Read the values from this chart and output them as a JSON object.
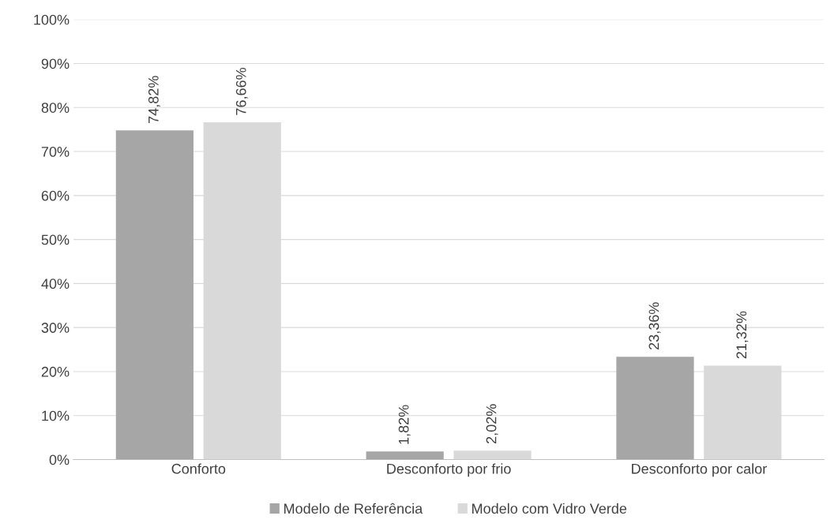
{
  "chart_data": {
    "type": "bar",
    "categories": [
      "Conforto",
      "Desconforto por frio",
      "Desconforto por calor"
    ],
    "series": [
      {
        "name": "Modelo de Referência",
        "color": "#a6a6a6",
        "values": [
          74.82,
          1.82,
          23.36
        ],
        "value_labels": [
          "74,82%",
          "1,82%",
          "23,36%"
        ]
      },
      {
        "name": "Modelo com Vidro Verde",
        "color": "#d9d9d9",
        "values": [
          76.66,
          2.02,
          21.32
        ],
        "value_labels": [
          "76,66%",
          "2,02%",
          "21,32%"
        ]
      }
    ],
    "ylim": [
      0,
      100
    ],
    "yticks": [
      {
        "value": 0,
        "label": "0%"
      },
      {
        "value": 10,
        "label": "10%"
      },
      {
        "value": 20,
        "label": "20%"
      },
      {
        "value": 30,
        "label": "30%"
      },
      {
        "value": 40,
        "label": "40%"
      },
      {
        "value": 50,
        "label": "50%"
      },
      {
        "value": 60,
        "label": "60%"
      },
      {
        "value": 70,
        "label": "70%"
      },
      {
        "value": 80,
        "label": "80%"
      },
      {
        "value": 90,
        "label": "90%"
      },
      {
        "value": 100,
        "label": "100%"
      }
    ],
    "grid": "y",
    "legend": "bottom"
  }
}
